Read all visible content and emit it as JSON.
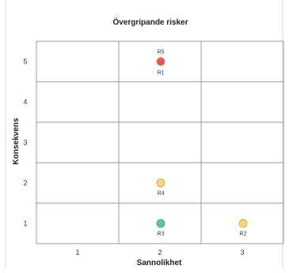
{
  "chart_data": {
    "type": "scatter",
    "title": "Övergripande risker",
    "xlabel": "Sannolikhet",
    "ylabel": "Konsekvens",
    "x_ticks": [
      "1",
      "2",
      "3"
    ],
    "y_ticks": [
      "1",
      "2",
      "3",
      "4",
      "5"
    ],
    "xlim": [
      0.5,
      3.5
    ],
    "ylim": [
      0.5,
      5.5
    ],
    "grid": true,
    "points": [
      {
        "label": "R5",
        "x": 2,
        "y": 5,
        "color": "#f2c46d"
      },
      {
        "label": "R1",
        "x": 2,
        "y": 5,
        "color": "#e0556b"
      },
      {
        "label": "R4",
        "x": 2,
        "y": 2,
        "color": "#f7d77a"
      },
      {
        "label": "R3",
        "x": 2,
        "y": 1,
        "color": "#5cc4a0"
      },
      {
        "label": "R2",
        "x": 3,
        "y": 1,
        "color": "#f7d77a"
      }
    ]
  }
}
